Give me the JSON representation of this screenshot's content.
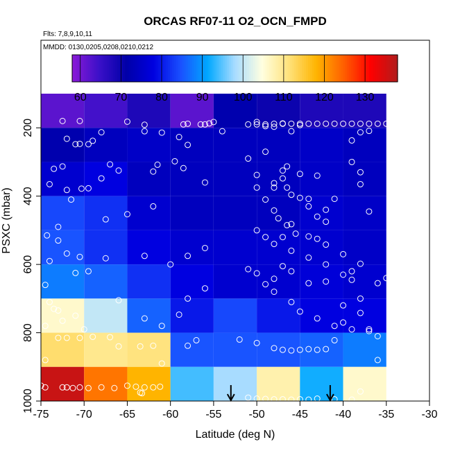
{
  "chart_data": {
    "type": "heatmap",
    "title": "ORCAS RF07-11 O2_OCN_FMPD",
    "flights_note": "Flts: 7,8,9,10,11",
    "dates_note": "MMDD: 0130,0205,0208,0210,0212",
    "xlabel": "Latitude (deg N)",
    "ylabel": "PSXC (mbar)",
    "xlim": [
      -75,
      -30
    ],
    "ylim": [
      1000,
      100
    ],
    "x_ticks": [
      -75,
      -70,
      -65,
      -60,
      -55,
      -50,
      -45,
      -40,
      -35,
      -30
    ],
    "y_ticks": [
      200,
      400,
      600,
      800,
      1000
    ],
    "colorbar": {
      "range": [
        58,
        138
      ],
      "ticks": [
        60,
        70,
        80,
        90,
        100,
        110,
        120,
        130
      ],
      "colors": [
        "#8b1ad8",
        "#3b10c8",
        "#0000a8",
        "#0000e0",
        "#1a50ff",
        "#00a8ff",
        "#a8dcff",
        "#ffffe0",
        "#ffe27a",
        "#ffb400",
        "#ff6000",
        "#ff0000",
        "#b01c1c"
      ]
    },
    "x_edges": [
      -75,
      -70,
      -65,
      -60,
      -55,
      -50,
      -45,
      -40,
      -35
    ],
    "y_edges": [
      100,
      200,
      300,
      400,
      500,
      600,
      700,
      800,
      900,
      1000
    ],
    "grid_values": [
      [
        62,
        64,
        68,
        62,
        72,
        70,
        68,
        68
      ],
      [
        72,
        74,
        75,
        74,
        74,
        74,
        75,
        74
      ],
      [
        76,
        78,
        74,
        74,
        74,
        74,
        75,
        74
      ],
      [
        84,
        82,
        76,
        74,
        74,
        74,
        76,
        75
      ],
      [
        85,
        82,
        78,
        76,
        76,
        76,
        76,
        75
      ],
      [
        88,
        86,
        82,
        78,
        76,
        76,
        77,
        76
      ],
      [
        106,
        100,
        86,
        80,
        84,
        80,
        78,
        78
      ],
      [
        112,
        110,
        111,
        85,
        85,
        85,
        86,
        88
      ],
      [
        136,
        123,
        118,
        94,
        98,
        108,
        92,
        106
      ]
    ],
    "points": [
      [
        -75,
        955
      ],
      [
        -74.5,
        960
      ],
      [
        -72.5,
        960
      ],
      [
        -72,
        960
      ],
      [
        -71.3,
        962
      ],
      [
        -70.5,
        960
      ],
      [
        -69.5,
        962
      ],
      [
        -68,
        960
      ],
      [
        -66.5,
        962
      ],
      [
        -65,
        955
      ],
      [
        -64,
        958
      ],
      [
        -63,
        960
      ],
      [
        -62,
        960
      ],
      [
        -61.2,
        958
      ],
      [
        -63.5,
        975
      ],
      [
        -63.3,
        977
      ],
      [
        -74.5,
        880
      ],
      [
        -73,
        815
      ],
      [
        -72,
        815
      ],
      [
        -70.5,
        815
      ],
      [
        -69,
        812
      ],
      [
        -67,
        813
      ],
      [
        -63.5,
        840
      ],
      [
        -62,
        838
      ],
      [
        -61,
        890
      ],
      [
        -58,
        838
      ],
      [
        -57,
        822
      ],
      [
        -74.5,
        780
      ],
      [
        -73,
        735
      ],
      [
        -72.5,
        765
      ],
      [
        -71,
        750
      ],
      [
        -70,
        790
      ],
      [
        -66,
        840
      ],
      [
        -74.5,
        660
      ],
      [
        -74,
        710
      ],
      [
        -73.5,
        730
      ],
      [
        -71,
        625
      ],
      [
        -69.5,
        620
      ],
      [
        -66,
        705
      ],
      [
        -74,
        590
      ],
      [
        -73,
        530
      ],
      [
        -72,
        568
      ],
      [
        -70.5,
        578
      ],
      [
        -67.5,
        582
      ],
      [
        -63,
        575
      ],
      [
        -60,
        600
      ],
      [
        -58,
        575
      ],
      [
        -56,
        552
      ],
      [
        -74.3,
        515
      ],
      [
        -73,
        490
      ],
      [
        -71.5,
        410
      ],
      [
        -67.5,
        468
      ],
      [
        -65,
        453
      ],
      [
        -62,
        430
      ],
      [
        -74,
        365
      ],
      [
        -73.5,
        320
      ],
      [
        -72.5,
        313
      ],
      [
        -72,
        382
      ],
      [
        -70.3,
        378
      ],
      [
        -69.5,
        377
      ],
      [
        -68,
        348
      ],
      [
        -67,
        307
      ],
      [
        -66,
        325
      ],
      [
        -62,
        328
      ],
      [
        -61.5,
        308
      ],
      [
        -59.5,
        298
      ],
      [
        -58.5,
        318
      ],
      [
        -56,
        360
      ],
      [
        -72,
        232
      ],
      [
        -71,
        248
      ],
      [
        -70.5,
        247
      ],
      [
        -69.5,
        248
      ],
      [
        -69,
        238
      ],
      [
        -68,
        213
      ],
      [
        -65,
        182
      ],
      [
        -63,
        191
      ],
      [
        -63,
        210
      ],
      [
        -61,
        214
      ],
      [
        -59,
        227
      ],
      [
        -58,
        250
      ],
      [
        -72.5,
        180
      ],
      [
        -70.5,
        180
      ],
      [
        -58.5,
        190
      ],
      [
        -58,
        188
      ],
      [
        -56.5,
        190
      ],
      [
        -56,
        190
      ],
      [
        -55.5,
        187
      ],
      [
        -55,
        183
      ],
      [
        -54,
        210
      ],
      [
        -51,
        190
      ],
      [
        -50,
        183
      ],
      [
        -49,
        195
      ],
      [
        -48,
        197
      ],
      [
        -47,
        187
      ],
      [
        -46,
        210
      ],
      [
        -45,
        192
      ],
      [
        -51,
        290
      ],
      [
        -50,
        338
      ],
      [
        -49,
        270
      ],
      [
        -48,
        362
      ],
      [
        -47,
        325
      ],
      [
        -47,
        348
      ],
      [
        -46.5,
        313
      ],
      [
        -46.5,
        375
      ],
      [
        -46,
        396
      ],
      [
        -45,
        335
      ],
      [
        -44,
        408
      ],
      [
        -43,
        340
      ],
      [
        -42,
        440
      ],
      [
        -41,
        408
      ],
      [
        -39,
        300
      ],
      [
        -38,
        330
      ],
      [
        -38,
        365
      ],
      [
        -37,
        445
      ],
      [
        -50,
        375
      ],
      [
        -49,
        410
      ],
      [
        -48,
        442
      ],
      [
        -47.5,
        465
      ],
      [
        -47,
        520
      ],
      [
        -46.5,
        485
      ],
      [
        -46,
        482
      ],
      [
        -45.5,
        510
      ],
      [
        -44,
        518
      ],
      [
        -43,
        525
      ],
      [
        -42,
        542
      ],
      [
        -40,
        570
      ],
      [
        -39,
        620
      ],
      [
        -50,
        500
      ],
      [
        -49,
        520
      ],
      [
        -48,
        540
      ],
      [
        -46,
        560
      ],
      [
        -44,
        580
      ],
      [
        -42,
        600
      ],
      [
        -40,
        630
      ],
      [
        -39,
        645
      ],
      [
        -38,
        598
      ],
      [
        -36,
        655
      ],
      [
        -35,
        640
      ],
      [
        -34,
        648
      ],
      [
        -50,
        190
      ],
      [
        -49,
        190
      ],
      [
        -48,
        188
      ],
      [
        -47,
        188
      ],
      [
        -46,
        188
      ],
      [
        -45,
        188
      ],
      [
        -44,
        188
      ],
      [
        -43,
        188
      ],
      [
        -42,
        188
      ],
      [
        -41,
        188
      ],
      [
        -40,
        188
      ],
      [
        -39,
        188
      ],
      [
        -38,
        188
      ],
      [
        -37,
        188
      ],
      [
        -36,
        188
      ],
      [
        -35,
        188
      ],
      [
        -39,
        237
      ],
      [
        -38,
        213
      ],
      [
        -37,
        209
      ],
      [
        -48,
        375
      ],
      [
        -45,
        405
      ],
      [
        -44,
        430
      ],
      [
        -43,
        460
      ],
      [
        -42,
        475
      ],
      [
        -51,
        614
      ],
      [
        -50,
        626
      ],
      [
        -49,
        658
      ],
      [
        -48,
        680
      ],
      [
        -46,
        710
      ],
      [
        -45,
        738
      ],
      [
        -43,
        758
      ],
      [
        -41,
        780
      ],
      [
        -39,
        790
      ],
      [
        -37,
        795
      ],
      [
        -52,
        820
      ],
      [
        -50,
        830
      ],
      [
        -48,
        845
      ],
      [
        -47,
        850
      ],
      [
        -46,
        852
      ],
      [
        -45,
        850
      ],
      [
        -44,
        848
      ],
      [
        -43,
        850
      ],
      [
        -42,
        848
      ],
      [
        -41,
        822
      ],
      [
        -40,
        770
      ],
      [
        -38,
        742
      ],
      [
        -51,
        990
      ],
      [
        -50,
        993
      ],
      [
        -49,
        994
      ],
      [
        -48,
        995
      ],
      [
        -47,
        995
      ],
      [
        -46,
        996
      ],
      [
        -45,
        995
      ],
      [
        -44,
        996
      ],
      [
        -43,
        993
      ],
      [
        -41,
        995
      ],
      [
        -39,
        996
      ],
      [
        -38,
        972
      ],
      [
        -36,
        880
      ],
      [
        -48,
        642
      ],
      [
        -47,
        605
      ],
      [
        -46,
        620
      ],
      [
        -44,
        655
      ],
      [
        -42,
        650
      ],
      [
        -40,
        720
      ],
      [
        -38,
        700
      ],
      [
        -37,
        790
      ],
      [
        -36,
        810
      ],
      [
        -56,
        670
      ],
      [
        -58,
        700
      ],
      [
        -59,
        747
      ],
      [
        -61,
        780
      ],
      [
        -63,
        758
      ]
    ],
    "arrows_at_latitude": [
      -53,
      -41.5
    ]
  }
}
